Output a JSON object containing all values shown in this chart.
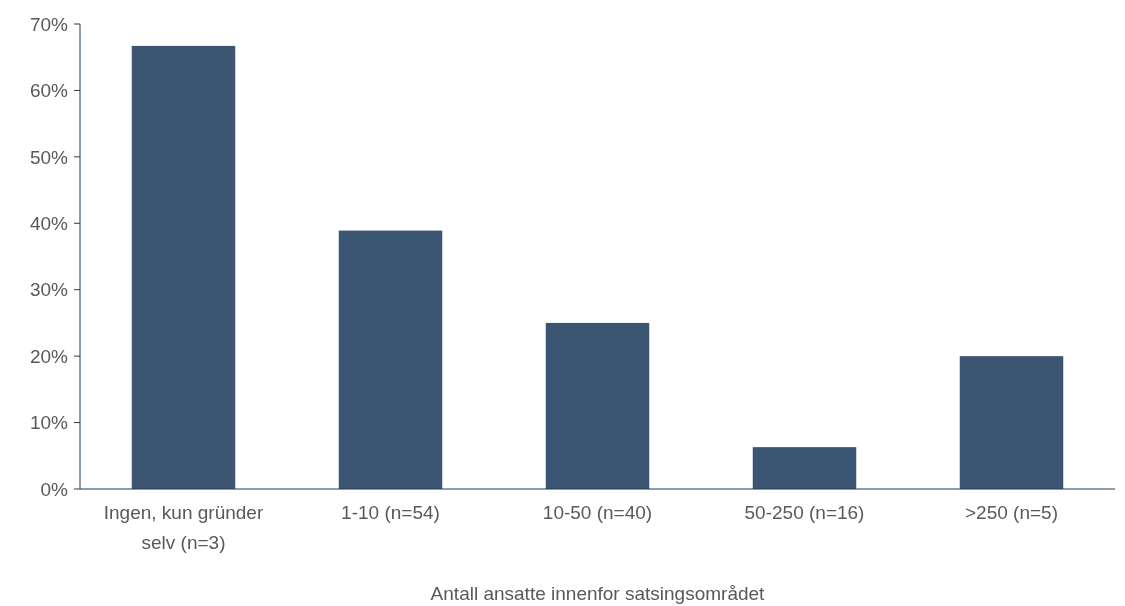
{
  "chart_data": {
    "type": "bar",
    "xlabel": "Antall ansatte innenfor satsingsområdet",
    "categories": [
      "Ingen, kun gründer selv (n=3)",
      "1-10 (n=54)",
      "10-50 (n=40)",
      "50-250 (n=16)",
      ">250 (n=5)"
    ],
    "values": [
      66.7,
      38.9,
      25,
      6.3,
      20
    ],
    "color": "#3b5573",
    "ylim": [
      0,
      70
    ],
    "yticks": [
      {
        "value": 0,
        "label": "0%"
      },
      {
        "value": 10,
        "label": "10%"
      },
      {
        "value": 20,
        "label": "20%"
      },
      {
        "value": 30,
        "label": "30%"
      },
      {
        "value": 40,
        "label": "40%"
      },
      {
        "value": 50,
        "label": "50%"
      },
      {
        "value": 60,
        "label": "60%"
      },
      {
        "value": 70,
        "label": "70%"
      }
    ],
    "grid": false
  }
}
